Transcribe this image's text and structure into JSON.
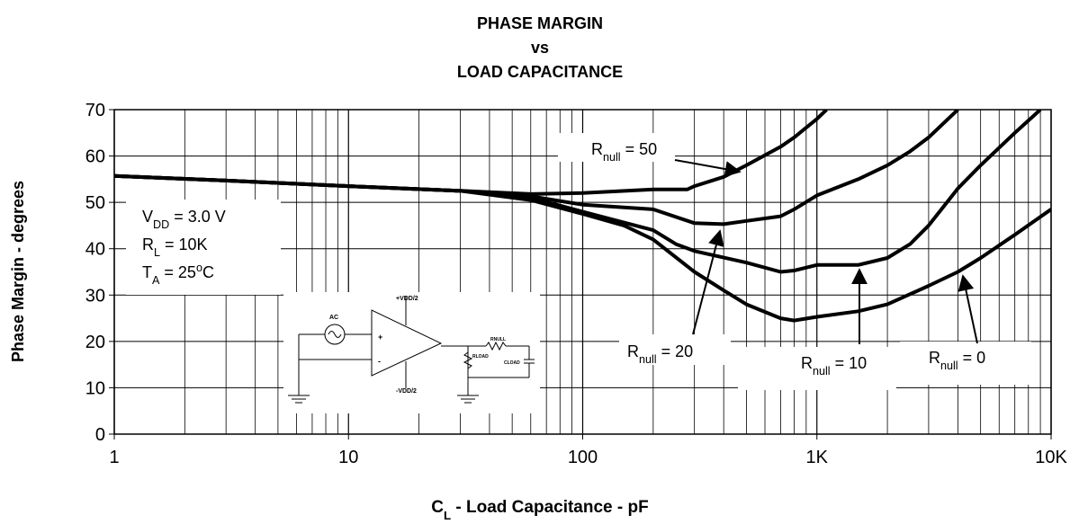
{
  "chart_data": {
    "type": "line",
    "title": [
      "PHASE MARGIN",
      "vs",
      "LOAD CAPACITANCE"
    ],
    "x_label": [
      {
        "t": "C"
      },
      {
        "t": "L",
        "sub": true
      },
      {
        "t": " - Load Capacitance - pF"
      }
    ],
    "y_label": "Phase Margin - degrees",
    "xscale": "log",
    "xlim": [
      1,
      10000
    ],
    "ylim": [
      0,
      70
    ],
    "xticks": [
      1,
      10,
      100,
      {
        "value": 1000,
        "label": "1K"
      },
      {
        "value": 10000,
        "label": "10K"
      }
    ],
    "yticks": [
      0,
      10,
      20,
      30,
      40,
      50,
      60,
      70
    ],
    "grid": true,
    "minor_grid": true,
    "conditions": [
      [
        {
          "t": "V"
        },
        {
          "t": "DD",
          "sub": true
        },
        {
          "t": " = 3.0 V"
        }
      ],
      [
        {
          "t": "R"
        },
        {
          "t": "L",
          "sub": true
        },
        {
          "t": " = 10K"
        }
      ],
      [
        {
          "t": "T"
        },
        {
          "t": "A",
          "sub": true
        },
        {
          "t": " = 25"
        },
        {
          "t": "o",
          "sup": true
        },
        {
          "t": "C"
        }
      ]
    ],
    "circuit_labels": [
      "AC",
      "+VDD/2",
      "-VDD/2",
      "+",
      "-",
      "RNULL",
      "RLOAD",
      "CLOAD"
    ],
    "series": [
      {
        "label": [
          {
            "t": "R"
          },
          {
            "t": "null",
            "sub": true
          },
          {
            "t": " = 50"
          }
        ],
        "color": "#000000",
        "x": [
          1,
          3,
          10,
          30,
          60,
          100,
          200,
          280,
          300,
          400,
          500,
          700,
          800,
          1000,
          1100
        ],
        "values": [
          55.7,
          54.7,
          53.5,
          52.5,
          51.8,
          52,
          52.8,
          52.8,
          53.5,
          55.5,
          58,
          62,
          64,
          68,
          70
        ]
      },
      {
        "label": [
          {
            "t": "R"
          },
          {
            "t": "null",
            "sub": true
          },
          {
            "t": " = 20"
          }
        ],
        "color": "#000000",
        "x": [
          1,
          3,
          10,
          30,
          60,
          100,
          200,
          300,
          400,
          500,
          700,
          800,
          1000,
          1500,
          2000,
          2500,
          3000,
          4000
        ],
        "values": [
          55.7,
          54.7,
          53.5,
          52.5,
          51.3,
          49.5,
          48.5,
          45.5,
          45.3,
          46,
          47,
          48.5,
          51.5,
          55,
          58,
          61,
          64,
          70
        ]
      },
      {
        "label": [
          {
            "t": "R"
          },
          {
            "t": "null",
            "sub": true
          },
          {
            "t": " = 10"
          }
        ],
        "color": "#000000",
        "x": [
          1,
          3,
          10,
          30,
          60,
          100,
          200,
          250,
          300,
          500,
          700,
          800,
          1000,
          1500,
          2000,
          2500,
          3000,
          4000,
          5000,
          7000,
          9000
        ],
        "values": [
          55.7,
          54.7,
          53.5,
          52.5,
          51,
          48,
          44,
          41,
          39.5,
          37,
          35,
          35.3,
          36.5,
          36.5,
          38,
          41,
          45,
          53,
          58,
          65,
          70
        ]
      },
      {
        "label": [
          {
            "t": "R"
          },
          {
            "t": "null",
            "sub": true
          },
          {
            "t": " = 0"
          }
        ],
        "color": "#000000",
        "x": [
          1,
          3,
          10,
          30,
          60,
          100,
          150,
          200,
          300,
          400,
          500,
          700,
          800,
          1000,
          1500,
          2000,
          3000,
          4000,
          5000,
          7000,
          10000
        ],
        "values": [
          55.7,
          54.7,
          53.5,
          52.5,
          50.5,
          47.5,
          45,
          42,
          35,
          31,
          28,
          25,
          24.5,
          25.3,
          26.5,
          28,
          32,
          35,
          38,
          43,
          48.5
        ]
      }
    ]
  }
}
